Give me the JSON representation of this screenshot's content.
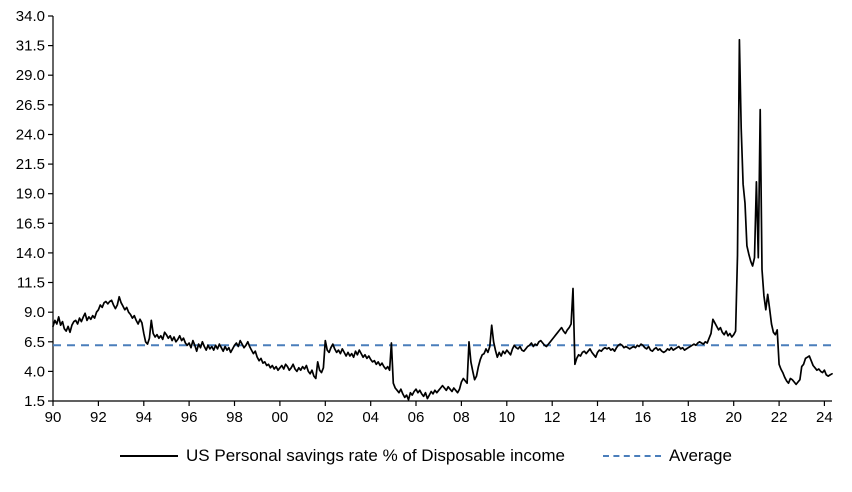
{
  "chart_data": {
    "type": "line",
    "title": "",
    "xlabel": "",
    "ylabel": "",
    "ylim": [
      1.5,
      34.0
    ],
    "y_ticks": [
      1.5,
      4.0,
      6.5,
      9.0,
      11.5,
      14.0,
      16.5,
      19.0,
      21.5,
      24.0,
      26.5,
      29.0,
      31.5,
      34.0
    ],
    "x_start_year": 1990,
    "x_frequency": "monthly",
    "x_tick_years": [
      1990,
      1992,
      1994,
      1996,
      1998,
      2000,
      2002,
      2004,
      2006,
      2008,
      2010,
      2012,
      2014,
      2016,
      2018,
      2020,
      2022,
      2024
    ],
    "x_tick_labels": [
      "90",
      "92",
      "94",
      "96",
      "98",
      "00",
      "02",
      "04",
      "06",
      "08",
      "10",
      "12",
      "14",
      "16",
      "18",
      "20",
      "22",
      "24"
    ],
    "grid": false,
    "legend_position": "bottom",
    "series": [
      {
        "name": "US Personal savings rate % of Disposable income",
        "color": "#000000",
        "style": "solid",
        "values": [
          7.8,
          8.3,
          8.0,
          8.6,
          7.9,
          8.2,
          7.6,
          7.4,
          7.8,
          7.3,
          7.9,
          8.2,
          8.3,
          8.0,
          8.5,
          8.2,
          8.6,
          8.9,
          8.3,
          8.6,
          8.4,
          8.7,
          8.5,
          9.0,
          9.2,
          9.6,
          9.4,
          9.8,
          9.9,
          9.7,
          9.9,
          10.0,
          9.6,
          9.3,
          9.6,
          10.3,
          9.8,
          9.5,
          9.2,
          9.4,
          9.0,
          8.8,
          8.5,
          8.7,
          8.3,
          8.0,
          8.4,
          8.1,
          7.2,
          6.5,
          6.3,
          6.8,
          8.3,
          7.2,
          6.9,
          7.1,
          6.8,
          7.0,
          6.7,
          7.3,
          7.1,
          6.8,
          7.0,
          6.6,
          6.9,
          6.5,
          6.7,
          7.0,
          6.6,
          6.8,
          6.4,
          6.2,
          6.4,
          6.0,
          6.6,
          6.2,
          5.7,
          6.3,
          6.0,
          6.5,
          6.1,
          5.8,
          6.2,
          5.9,
          6.1,
          5.8,
          6.2,
          5.9,
          6.3,
          6.0,
          5.7,
          6.1,
          5.8,
          6.0,
          5.6,
          5.9,
          6.2,
          6.4,
          6.1,
          6.6,
          6.3,
          6.0,
          6.2,
          6.5,
          6.1,
          5.8,
          5.5,
          5.7,
          5.2,
          4.9,
          5.1,
          4.7,
          4.8,
          4.5,
          4.6,
          4.3,
          4.5,
          4.2,
          4.4,
          4.1,
          4.3,
          4.5,
          4.2,
          4.6,
          4.4,
          4.1,
          4.3,
          4.6,
          4.2,
          4.0,
          4.3,
          4.1,
          4.4,
          4.2,
          4.5,
          4.0,
          3.8,
          4.1,
          3.6,
          3.4,
          4.8,
          4.1,
          3.9,
          4.3,
          6.6,
          5.8,
          5.6,
          6.0,
          6.3,
          5.9,
          5.6,
          5.8,
          5.5,
          5.9,
          5.6,
          5.3,
          5.6,
          5.3,
          5.5,
          5.2,
          5.7,
          5.4,
          5.8,
          5.5,
          5.2,
          5.4,
          5.1,
          5.3,
          5.0,
          4.8,
          4.9,
          4.6,
          4.8,
          4.5,
          4.7,
          4.4,
          4.2,
          4.4,
          4.1,
          6.4,
          3.0,
          2.6,
          2.4,
          2.2,
          2.5,
          2.1,
          1.8,
          2.0,
          1.6,
          2.2,
          2.0,
          2.3,
          2.5,
          2.2,
          2.4,
          2.1,
          1.9,
          2.2,
          1.7,
          2.0,
          2.3,
          2.1,
          2.4,
          2.2,
          2.4,
          2.6,
          2.8,
          2.6,
          2.4,
          2.7,
          2.5,
          2.3,
          2.6,
          2.4,
          2.2,
          2.5,
          3.1,
          3.4,
          3.2,
          3.0,
          6.5,
          4.8,
          4.0,
          3.3,
          3.6,
          4.4,
          5.0,
          5.4,
          5.5,
          5.9,
          5.6,
          6.1,
          7.9,
          6.5,
          5.8,
          5.2,
          5.6,
          5.3,
          5.7,
          5.5,
          5.8,
          5.6,
          5.4,
          5.9,
          6.2,
          6.0,
          5.9,
          6.1,
          5.8,
          5.7,
          5.9,
          6.1,
          6.2,
          6.4,
          6.1,
          6.3,
          6.2,
          6.5,
          6.6,
          6.4,
          6.2,
          6.1,
          6.3,
          6.5,
          6.7,
          6.9,
          7.1,
          7.3,
          7.5,
          7.7,
          7.4,
          7.2,
          7.5,
          7.7,
          8.0,
          11.0,
          4.6,
          5.1,
          5.4,
          5.3,
          5.6,
          5.7,
          5.5,
          5.7,
          5.9,
          5.6,
          5.4,
          5.2,
          5.6,
          5.8,
          5.7,
          5.9,
          6.0,
          5.9,
          6.0,
          5.8,
          5.9,
          5.7,
          6.0,
          6.2,
          6.3,
          6.2,
          6.0,
          6.1,
          6.0,
          5.9,
          6.0,
          6.1,
          6.0,
          6.2,
          6.1,
          6.3,
          6.2,
          6.0,
          5.9,
          6.1,
          5.8,
          5.7,
          5.9,
          6.0,
          5.8,
          5.9,
          5.7,
          5.6,
          5.7,
          5.9,
          5.8,
          6.0,
          5.8,
          5.9,
          6.0,
          6.1,
          5.9,
          6.0,
          5.8,
          5.9,
          6.0,
          6.1,
          6.2,
          6.3,
          6.2,
          6.4,
          6.5,
          6.4,
          6.3,
          6.5,
          6.4,
          6.8,
          7.2,
          8.4,
          8.1,
          7.8,
          7.5,
          7.7,
          7.3,
          7.1,
          7.4,
          7.0,
          7.2,
          6.9,
          7.1,
          7.4,
          13.8,
          32.0,
          24.5,
          19.8,
          18.2,
          14.6,
          13.9,
          13.3,
          12.9,
          13.6,
          20.0,
          13.6,
          26.1,
          12.6,
          10.4,
          9.2,
          10.5,
          9.3,
          8.0,
          7.3,
          7.1,
          7.5,
          4.6,
          4.2,
          3.9,
          3.5,
          3.2,
          3.0,
          3.4,
          3.3,
          3.1,
          2.9,
          3.1,
          3.3,
          4.4,
          4.6,
          5.1,
          5.2,
          5.3,
          4.9,
          4.5,
          4.3,
          4.1,
          4.2,
          4.0,
          3.9,
          4.1,
          3.7,
          3.6,
          3.7,
          3.8
        ]
      },
      {
        "name": "Average",
        "color": "#4a7ebb",
        "style": "dashed",
        "value": 6.2
      }
    ]
  },
  "legend": {
    "series_label": "US Personal savings rate % of Disposable income",
    "average_label": "Average"
  }
}
